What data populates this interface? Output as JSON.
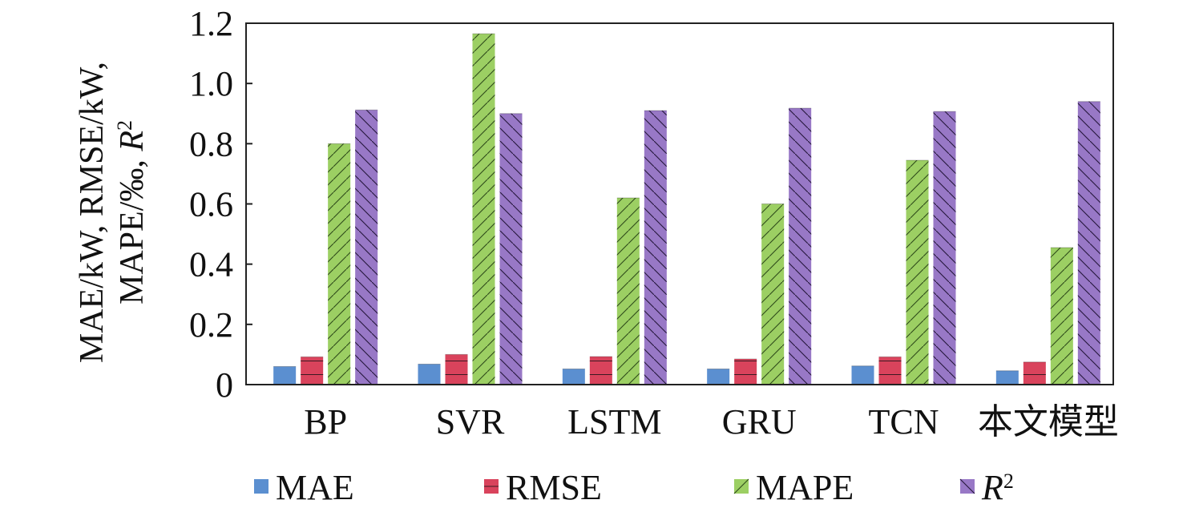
{
  "chart_data": {
    "type": "bar",
    "categories": [
      "BP",
      "SVR",
      "LSTM",
      "GRU",
      "TCN",
      "本文模型"
    ],
    "series": [
      {
        "name": "MAE",
        "values": [
          0.06,
          0.068,
          0.052,
          0.052,
          0.062,
          0.046
        ]
      },
      {
        "name": "RMSE",
        "values": [
          0.092,
          0.1,
          0.093,
          0.085,
          0.092,
          0.075
        ]
      },
      {
        "name": "MAPE",
        "values": [
          0.8,
          1.165,
          0.62,
          0.6,
          0.745,
          0.455
        ]
      },
      {
        "name": "R2",
        "values": [
          0.912,
          0.9,
          0.91,
          0.918,
          0.907,
          0.94
        ]
      }
    ],
    "legend": [
      {
        "name": "MAE",
        "label": "MAE"
      },
      {
        "name": "RMSE",
        "label": "RMSE"
      },
      {
        "name": "MAPE",
        "label": "MAPE"
      },
      {
        "name": "R2",
        "label": "R",
        "sup": "2"
      }
    ],
    "ylabel_line1": "MAE/kW, RMSE/kW,",
    "ylabel_line2_text": "MAPE/‰, ",
    "ylabel_line2_R": "R",
    "ylabel_line2_sup": "2",
    "ylim": [
      0,
      1.2
    ],
    "yticks": [
      "0",
      "0.2",
      "0.4",
      "0.6",
      "0.8",
      "1.0",
      "1.2"
    ],
    "legend_position": "bottom",
    "colors": {
      "MAE": "#5b8fd0",
      "RMSE": "#d9435c",
      "MAPE": "#9ccf63",
      "R2": "#9878c6",
      "axis": "#222222"
    }
  }
}
